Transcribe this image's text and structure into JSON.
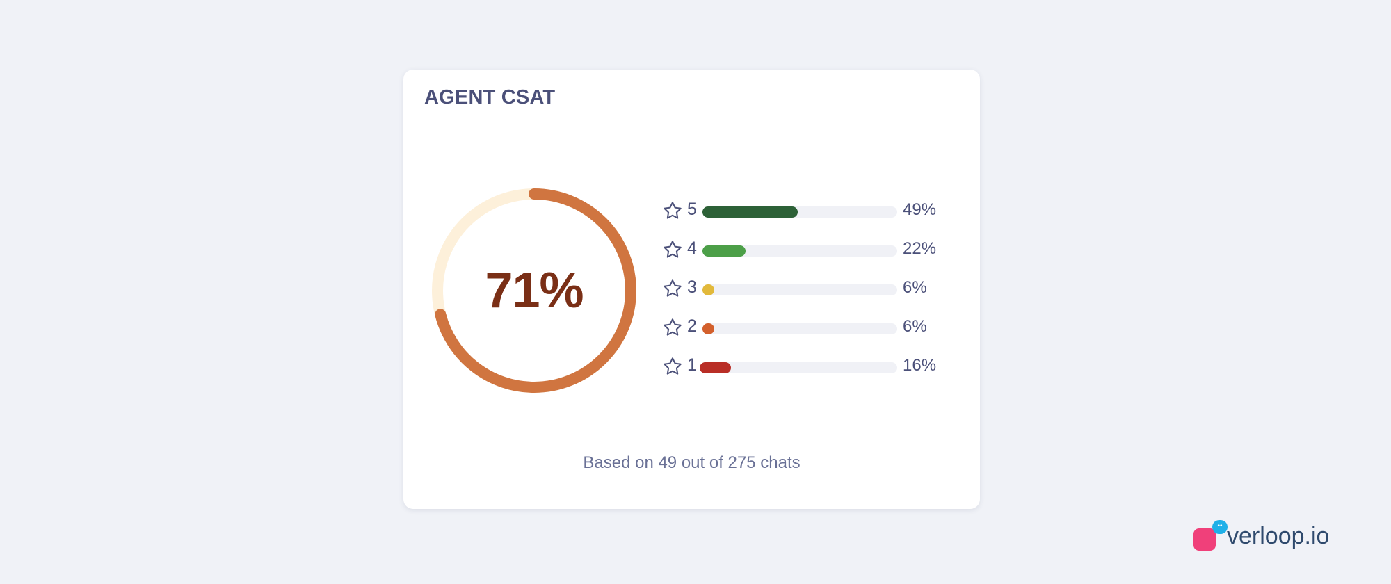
{
  "card": {
    "title": "AGENT CSAT",
    "score": "71%",
    "score_fraction": 0.71,
    "footer": "Based on 49 out of 275 chats"
  },
  "colors": {
    "donut_arc": "#d07540",
    "donut_track": "#fdf0da",
    "score_text": "#7a2f16"
  },
  "ratings": [
    {
      "stars": "5",
      "percent": "49%",
      "value": 49,
      "color": "#2d6137",
      "icon": "star-outline-icon"
    },
    {
      "stars": "4",
      "percent": "22%",
      "value": 22,
      "color": "#4c9f48",
      "icon": "star-outline-icon"
    },
    {
      "stars": "3",
      "percent": "6%",
      "value": 6,
      "color": "#e2b93b",
      "icon": "star-outline-icon"
    },
    {
      "stars": "2",
      "percent": "6%",
      "value": 6,
      "color": "#d3602c",
      "icon": "star-outline-icon"
    },
    {
      "stars": "1",
      "percent": "16%",
      "value": 16,
      "color": "#b92e26",
      "icon": "star-outline-icon"
    }
  ],
  "brand": {
    "name": "verloop.io",
    "icon": "verloop-logo-icon"
  }
}
